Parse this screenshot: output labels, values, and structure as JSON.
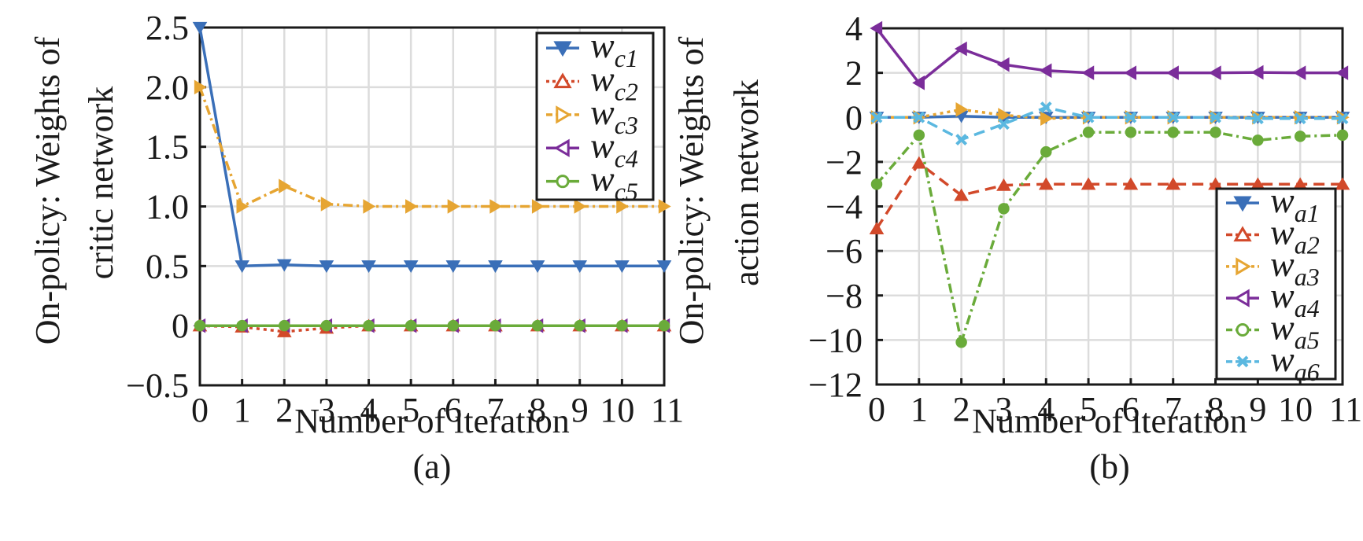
{
  "chart_data": [
    {
      "type": "line",
      "caption": "(a)",
      "title": "",
      "xlabel": "Number of iteration",
      "ylabel_lines": [
        "On-policy: Weights of",
        "critic network"
      ],
      "x": [
        0,
        1,
        2,
        3,
        4,
        5,
        6,
        7,
        8,
        9,
        10,
        11
      ],
      "x_tick_labels": [
        "0",
        "1",
        "2",
        "3",
        "4",
        "5",
        "6",
        "7",
        "8",
        "9",
        "10",
        "11"
      ],
      "xlim": [
        0,
        11
      ],
      "ylim": [
        -0.5,
        2.5
      ],
      "y_ticks": [
        -0.5,
        0,
        0.5,
        1.0,
        1.5,
        2.0,
        2.5
      ],
      "y_tick_labels": [
        "−0.5",
        "0",
        "0.5",
        "1.0",
        "1.5",
        "2.0",
        "2.5"
      ],
      "grid": true,
      "legend_position": "top-right",
      "series": [
        {
          "name": "w_c1",
          "base": "w",
          "sub": "c1",
          "color": "#3a6fb8",
          "dash": "solid",
          "marker": "triangle-down",
          "values": [
            2.5,
            0.5,
            0.51,
            0.5,
            0.5,
            0.5,
            0.5,
            0.5,
            0.5,
            0.5,
            0.5,
            0.5
          ]
        },
        {
          "name": "w_c2",
          "base": "w",
          "sub": "c2",
          "color": "#d2492a",
          "dash": "dotted",
          "marker": "triangle-up",
          "values": [
            0,
            -0.01,
            -0.05,
            -0.02,
            0,
            0,
            0,
            0,
            0,
            0,
            0,
            0
          ]
        },
        {
          "name": "w_c3",
          "base": "w",
          "sub": "c3",
          "color": "#e6a532",
          "dash": "dashdot",
          "marker": "triangle-right",
          "values": [
            2.0,
            1.0,
            1.17,
            1.02,
            1.0,
            1.0,
            1.0,
            1.0,
            1.0,
            1.0,
            1.0,
            1.0
          ]
        },
        {
          "name": "w_c4",
          "base": "w",
          "sub": "c4",
          "color": "#7b2d9a",
          "dash": "solid",
          "marker": "triangle-left",
          "values": [
            0,
            0,
            0,
            0,
            0,
            0,
            0,
            0,
            0,
            0,
            0,
            0
          ]
        },
        {
          "name": "w_c5",
          "base": "w",
          "sub": "c5",
          "color": "#6aab3a",
          "dash": "solid",
          "marker": "circle",
          "values": [
            0,
            0,
            0,
            0,
            0,
            0,
            0,
            0,
            0,
            0,
            0,
            0
          ]
        }
      ]
    },
    {
      "type": "line",
      "caption": "(b)",
      "title": "",
      "xlabel": "Number of iteration",
      "ylabel_lines": [
        "On-policy: Weights of",
        "action network"
      ],
      "x": [
        0,
        1,
        2,
        3,
        4,
        5,
        6,
        7,
        8,
        9,
        10,
        11
      ],
      "x_tick_labels": [
        "0",
        "1",
        "2",
        "3",
        "4",
        "5",
        "6",
        "7",
        "8",
        "9",
        "10",
        "11"
      ],
      "xlim": [
        0,
        11
      ],
      "ylim": [
        -12,
        4
      ],
      "y_ticks": [
        -12,
        -10,
        -8,
        -6,
        -4,
        -2,
        0,
        2,
        4
      ],
      "y_tick_labels": [
        "−12",
        "−10",
        "−8",
        "−6",
        "−4",
        "−2",
        "0",
        "2",
        "4"
      ],
      "grid": true,
      "legend_position": "bottom-right",
      "series": [
        {
          "name": "w_a1",
          "base": "w",
          "sub": "a1",
          "color": "#3a6fb8",
          "dash": "solid",
          "marker": "triangle-down",
          "values": [
            0,
            0,
            0.05,
            0,
            0,
            0,
            0,
            0,
            0,
            0,
            0,
            0
          ]
        },
        {
          "name": "w_a2",
          "base": "w",
          "sub": "a2",
          "color": "#d2492a",
          "dash": "dashed",
          "marker": "triangle-up",
          "values": [
            -5,
            -2.05,
            -3.5,
            -3.05,
            -3,
            -3,
            -3,
            -3,
            -3,
            -3,
            -3,
            -3
          ]
        },
        {
          "name": "w_a3",
          "base": "w",
          "sub": "a3",
          "color": "#e6a532",
          "dash": "dotted",
          "marker": "triangle-right",
          "values": [
            0,
            0,
            0.35,
            0.1,
            -0.05,
            0,
            0,
            0,
            0,
            0,
            0,
            0
          ]
        },
        {
          "name": "w_a4",
          "base": "w",
          "sub": "a4",
          "color": "#7b2d9a",
          "dash": "solid",
          "marker": "triangle-left",
          "values": [
            4,
            1.55,
            3.08,
            2.37,
            2.1,
            2.0,
            2.0,
            2.0,
            2.0,
            2.02,
            2.0,
            2.0
          ]
        },
        {
          "name": "w_a5",
          "base": "w",
          "sub": "a5",
          "color": "#6aab3a",
          "dash": "dashdot",
          "marker": "circle",
          "values": [
            -3.0,
            -0.8,
            -10.1,
            -4.1,
            -1.55,
            -0.67,
            -0.67,
            -0.67,
            -0.67,
            -1.03,
            -0.85,
            -0.8
          ]
        },
        {
          "name": "w_a6",
          "base": "w",
          "sub": "a6",
          "color": "#5bb8e0",
          "dash": "dashed",
          "marker": "x",
          "values": [
            0,
            0,
            -1.0,
            -0.3,
            0.45,
            0,
            0,
            0,
            0,
            -0.05,
            -0.05,
            -0.05
          ]
        }
      ]
    }
  ]
}
